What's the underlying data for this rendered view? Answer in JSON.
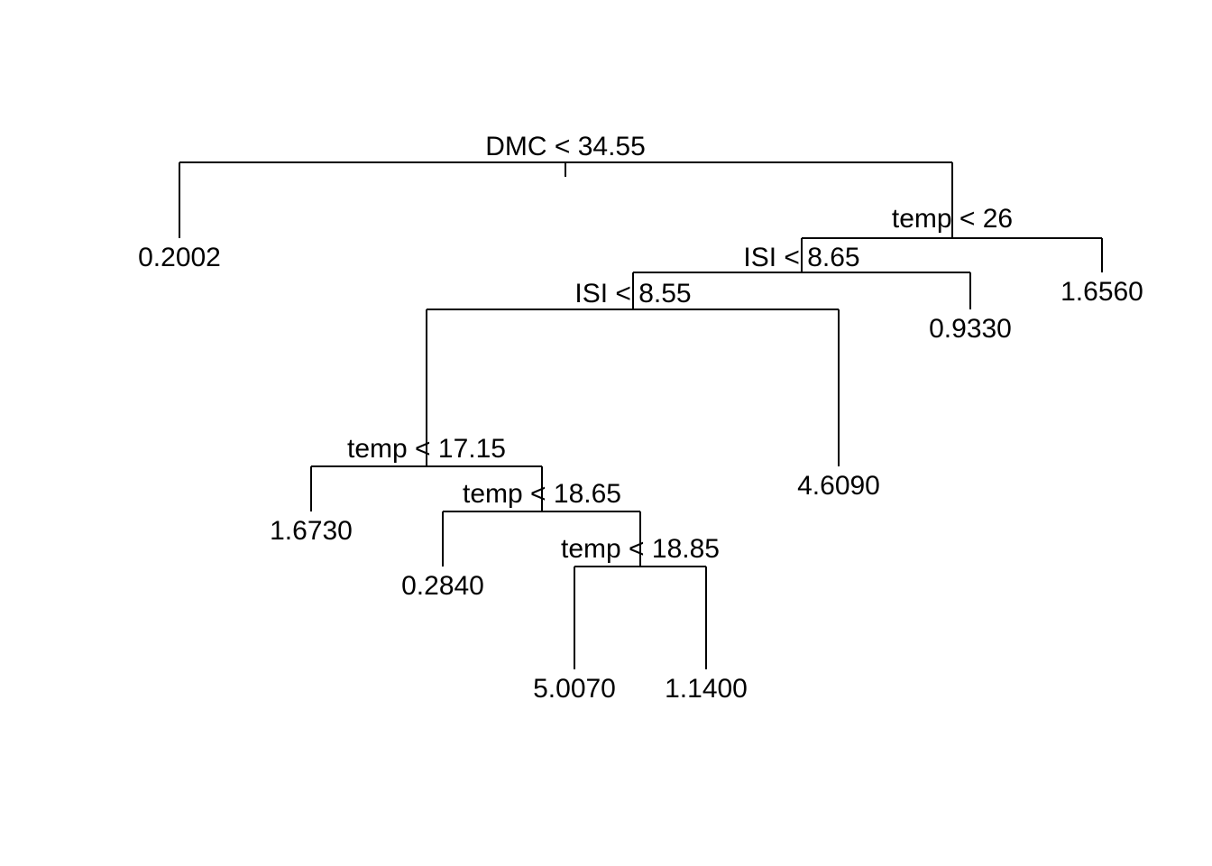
{
  "colors": {
    "line": "#000000",
    "text": "#000000",
    "background": "#ffffff"
  },
  "tree": {
    "root": {
      "id": "n1",
      "split": "DMC < 34.55",
      "left": {
        "id": "n2",
        "leaf": "0.2002"
      },
      "right": {
        "id": "n3",
        "split": "temp < 26",
        "left": {
          "id": "n4",
          "split": "ISI < 8.65",
          "left": {
            "id": "n5",
            "split": "ISI < 8.55",
            "left": {
              "id": "n6",
              "split": "temp < 17.15",
              "left": {
                "id": "n7",
                "leaf": "1.6730"
              },
              "right": {
                "id": "n8",
                "split": "temp < 18.65",
                "left": {
                  "id": "n9",
                  "leaf": "0.2840"
                },
                "right": {
                  "id": "n10",
                  "split": "temp < 18.85",
                  "left": {
                    "id": "n11",
                    "leaf": "5.0070"
                  },
                  "right": {
                    "id": "n12",
                    "leaf": "1.1400"
                  }
                }
              }
            },
            "right": {
              "id": "n13",
              "leaf": "4.6090"
            }
          },
          "right": {
            "id": "n14",
            "leaf": "0.9330"
          }
        },
        "right": {
          "id": "n15",
          "leaf": "1.6560"
        }
      }
    }
  }
}
